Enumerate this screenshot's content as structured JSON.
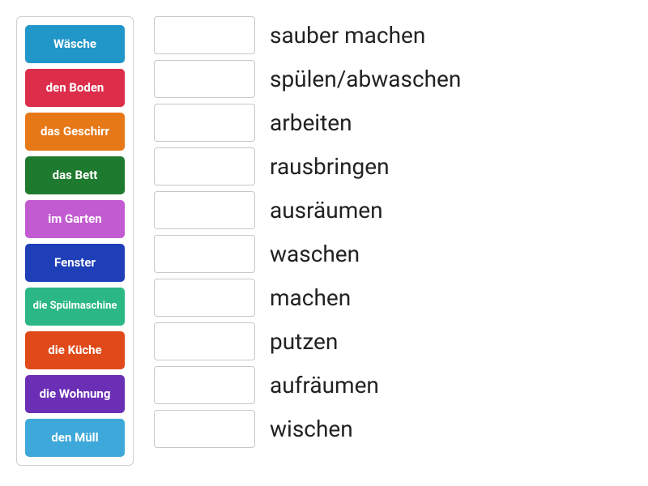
{
  "wordBank": {
    "borderColor": "#d0d0d0",
    "tiles": [
      {
        "label": "Wäsche",
        "bgColor": "#2196c9",
        "smallText": false
      },
      {
        "label": "den Boden",
        "bgColor": "#dc2e4a",
        "smallText": false
      },
      {
        "label": "das Geschirr",
        "bgColor": "#e77817",
        "smallText": false
      },
      {
        "label": "das Bett",
        "bgColor": "#1e7a2e",
        "smallText": false
      },
      {
        "label": "im Garten",
        "bgColor": "#c25bd1",
        "smallText": false
      },
      {
        "label": "Fenster",
        "bgColor": "#1e3fb8",
        "smallText": false
      },
      {
        "label": "die Spülmaschine",
        "bgColor": "#2bb884",
        "smallText": true
      },
      {
        "label": "die Küche",
        "bgColor": "#e04a1a",
        "smallText": false
      },
      {
        "label": "die Wohnung",
        "bgColor": "#6b2fb5",
        "smallText": false
      },
      {
        "label": "den Müll",
        "bgColor": "#3da8d9",
        "smallText": false
      }
    ]
  },
  "matchArea": {
    "dropZone": {
      "borderColor": "#c8c8c8",
      "bgColor": "#ffffff"
    },
    "labelColor": "#222222",
    "labelFontSize": 28,
    "rows": [
      {
        "label": "sauber machen"
      },
      {
        "label": "spülen/abwaschen"
      },
      {
        "label": "arbeiten"
      },
      {
        "label": "rausbringen"
      },
      {
        "label": "ausräumen"
      },
      {
        "label": "waschen"
      },
      {
        "label": "machen"
      },
      {
        "label": "putzen"
      },
      {
        "label": "aufräumen"
      },
      {
        "label": "wischen"
      }
    ]
  }
}
